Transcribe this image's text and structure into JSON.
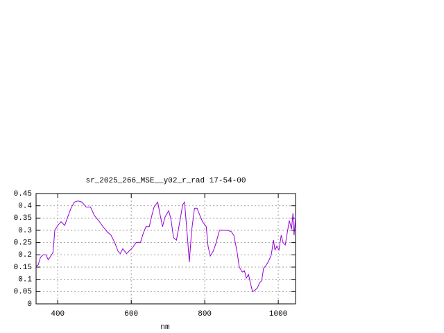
{
  "chart_data": {
    "type": "line",
    "title": "sr_2025_266_MSE__y02_r_rad 17-54-00",
    "x_label": "nm",
    "color": "#9400d3",
    "grid": true,
    "x": [
      341,
      347,
      353,
      360,
      368,
      374,
      379,
      387,
      392,
      400,
      409,
      419,
      426,
      436,
      445,
      455,
      466,
      477,
      489,
      500,
      511,
      523,
      534,
      545,
      555,
      564,
      570,
      577,
      587,
      594,
      604,
      613,
      625,
      632,
      640,
      649,
      655,
      662,
      672,
      677,
      685,
      692,
      702,
      708,
      715,
      723,
      732,
      740,
      745,
      753,
      758,
      764,
      772,
      779,
      787,
      794,
      804,
      809,
      815,
      823,
      830,
      840,
      851,
      862,
      872,
      879,
      887,
      894,
      902,
      908,
      913,
      919,
      925,
      930,
      936,
      943,
      949,
      955,
      960,
      966,
      974,
      981,
      987,
      991,
      996,
      1002,
      1008,
      1013,
      1019,
      1025,
      1030,
      1036,
      1040,
      1043,
      1047
    ],
    "values": [
      0.153,
      0.16,
      0.19,
      0.2,
      0.2,
      0.18,
      0.19,
      0.21,
      0.3,
      0.32,
      0.335,
      0.32,
      0.35,
      0.39,
      0.415,
      0.42,
      0.415,
      0.395,
      0.395,
      0.36,
      0.34,
      0.315,
      0.295,
      0.28,
      0.25,
      0.215,
      0.205,
      0.225,
      0.205,
      0.215,
      0.23,
      0.25,
      0.25,
      0.285,
      0.315,
      0.315,
      0.355,
      0.395,
      0.415,
      0.375,
      0.315,
      0.355,
      0.38,
      0.345,
      0.27,
      0.26,
      0.335,
      0.405,
      0.415,
      0.27,
      0.17,
      0.295,
      0.39,
      0.39,
      0.36,
      0.335,
      0.315,
      0.235,
      0.195,
      0.215,
      0.245,
      0.3,
      0.3,
      0.3,
      0.295,
      0.28,
      0.22,
      0.15,
      0.13,
      0.135,
      0.105,
      0.12,
      0.08,
      0.05,
      0.055,
      0.065,
      0.085,
      0.095,
      0.145,
      0.155,
      0.175,
      0.2,
      0.26,
      0.22,
      0.235,
      0.22,
      0.28,
      0.25,
      0.24,
      0.295,
      0.34,
      0.305,
      0.37,
      0.28,
      0.355
    ],
    "xlim": [
      341,
      1047
    ],
    "ylim": [
      0,
      0.45
    ],
    "xticks": [
      400,
      600,
      800,
      1000
    ],
    "yticks": [
      0,
      0.05,
      0.1,
      0.15,
      0.2,
      0.25,
      0.3,
      0.35,
      0.4,
      0.45
    ]
  }
}
